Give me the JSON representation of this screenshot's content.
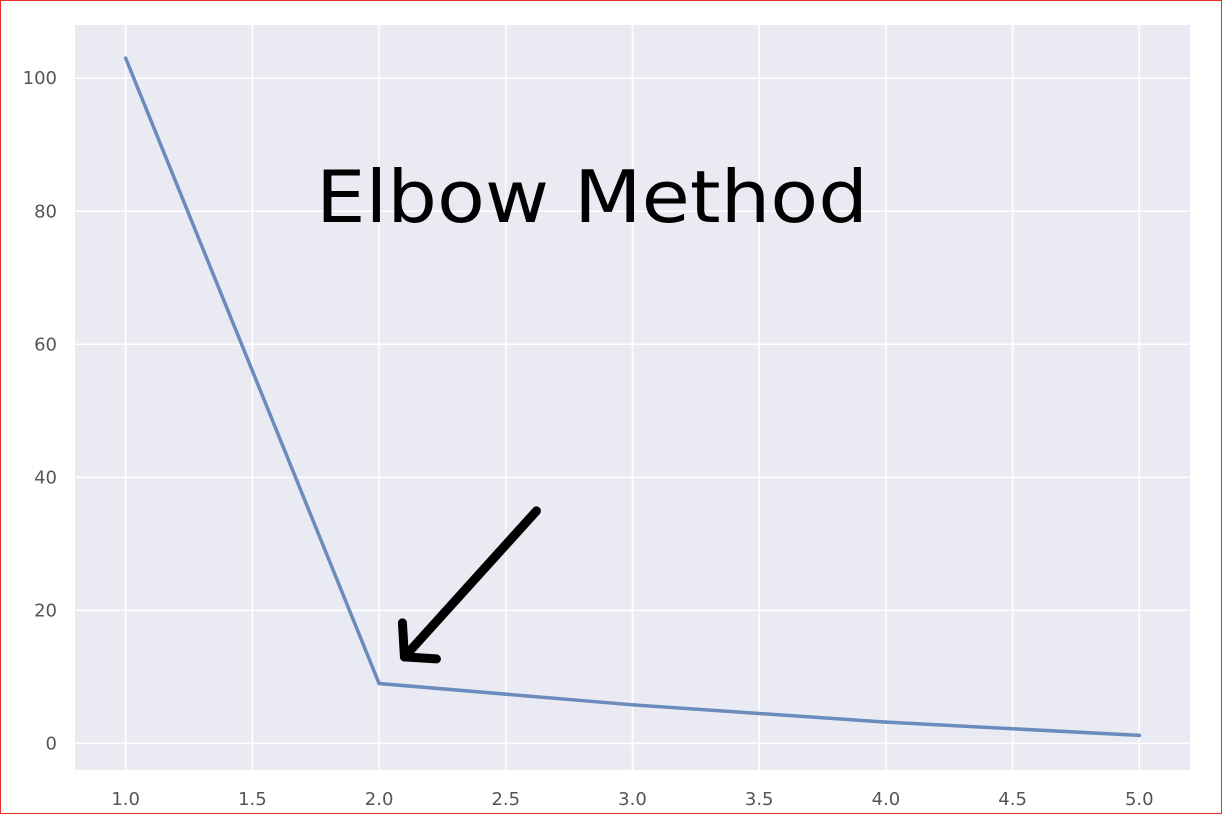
{
  "chart_data": {
    "type": "line",
    "title": "",
    "xlabel": "",
    "ylabel": "",
    "x": [
      1,
      2,
      3,
      4,
      5
    ],
    "series": [
      {
        "values": [
          103,
          9,
          5.8,
          3.2,
          1.2
        ]
      }
    ],
    "xlim": [
      0.8,
      5.2
    ],
    "ylim": [
      -4,
      108
    ],
    "xticks": [
      1.0,
      1.5,
      2.0,
      2.5,
      3.0,
      3.5,
      4.0,
      4.5,
      5.0
    ],
    "xtick_labels": [
      "1.0",
      "1.5",
      "2.0",
      "2.5",
      "3.0",
      "3.5",
      "4.0",
      "4.5",
      "5.0"
    ],
    "yticks": [
      0,
      20,
      40,
      60,
      80,
      100
    ],
    "ytick_labels": [
      "0",
      "20",
      "40",
      "60",
      "80",
      "100"
    ],
    "grid": true,
    "annotation": {
      "text": "Elbow Method",
      "arrow_points_to": {
        "x": 2.1,
        "y": 13
      }
    },
    "colors": {
      "plot_background": "#eaeaf2",
      "grid": "#ffffff",
      "line": "#6b8bbd",
      "frame": "#e3302b",
      "arrow": "#000000"
    }
  }
}
